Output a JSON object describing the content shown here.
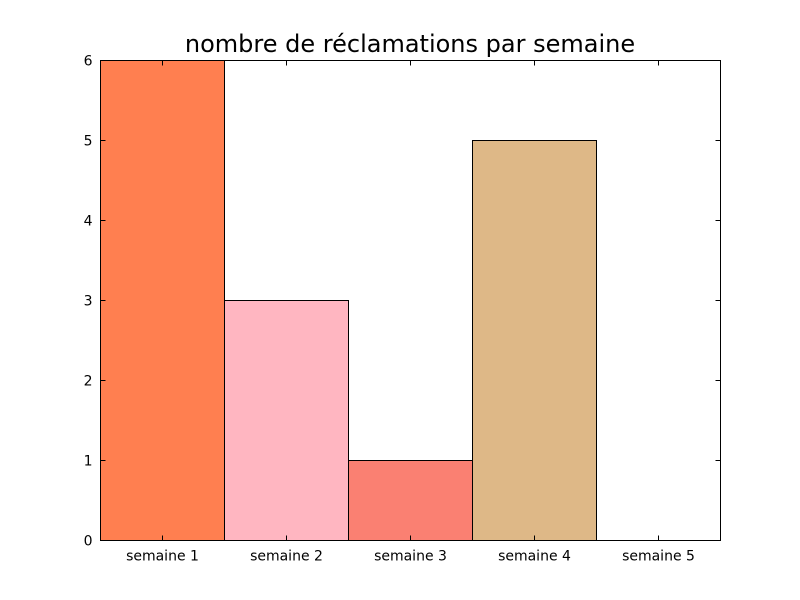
{
  "chart_data": {
    "type": "bar",
    "title": "nombre de réclamations par semaine",
    "xlabel": "",
    "ylabel": "",
    "categories": [
      "semaine 1",
      "semaine 2",
      "semaine 3",
      "semaine 4",
      "semaine 5"
    ],
    "values": [
      6,
      3,
      1,
      5,
      0
    ],
    "colors": [
      "#ff7f50",
      "#ffb6c1",
      "#fa8072",
      "#deb887",
      "#ffffff"
    ],
    "ylim": [
      0,
      6
    ],
    "yticks": [
      0,
      1,
      2,
      3,
      4,
      5,
      6
    ],
    "grid": false,
    "legend": "none"
  }
}
